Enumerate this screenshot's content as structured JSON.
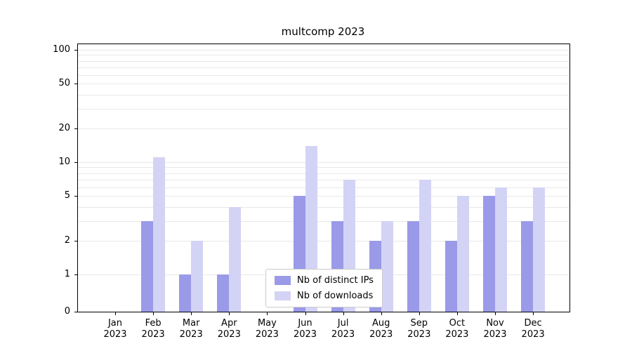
{
  "figure": {
    "title": "multcomp 2023"
  },
  "chart_data": {
    "type": "bar",
    "title": "multcomp 2023",
    "yscale": "symlog",
    "xlabel": "",
    "ylabel": "",
    "grid": true,
    "legend_position": "lower center",
    "categories": [
      "Jan 2023",
      "Feb 2023",
      "Mar 2023",
      "Apr 2023",
      "May 2023",
      "Jun 2023",
      "Jul 2023",
      "Aug 2023",
      "Sep 2023",
      "Oct 2023",
      "Nov 2023",
      "Dec 2023"
    ],
    "series": [
      {
        "name": "Nb of distinct IPs",
        "color": "#9a9ae8",
        "values": [
          0,
          3,
          1,
          1,
          0,
          5,
          3,
          2,
          3,
          2,
          5,
          3
        ]
      },
      {
        "name": "Nb of downloads",
        "color": "#d3d3f5",
        "values": [
          0,
          11,
          2,
          4,
          0,
          14,
          7,
          3,
          7,
          5,
          6,
          6
        ]
      }
    ],
    "yticks": [
      0,
      1,
      2,
      5,
      10,
      20,
      50,
      100
    ],
    "grid_values": [
      1,
      2,
      3,
      4,
      5,
      6,
      7,
      8,
      9,
      10,
      20,
      30,
      40,
      50,
      60,
      70,
      80,
      90,
      100
    ],
    "ylim": [
      0,
      120
    ]
  }
}
